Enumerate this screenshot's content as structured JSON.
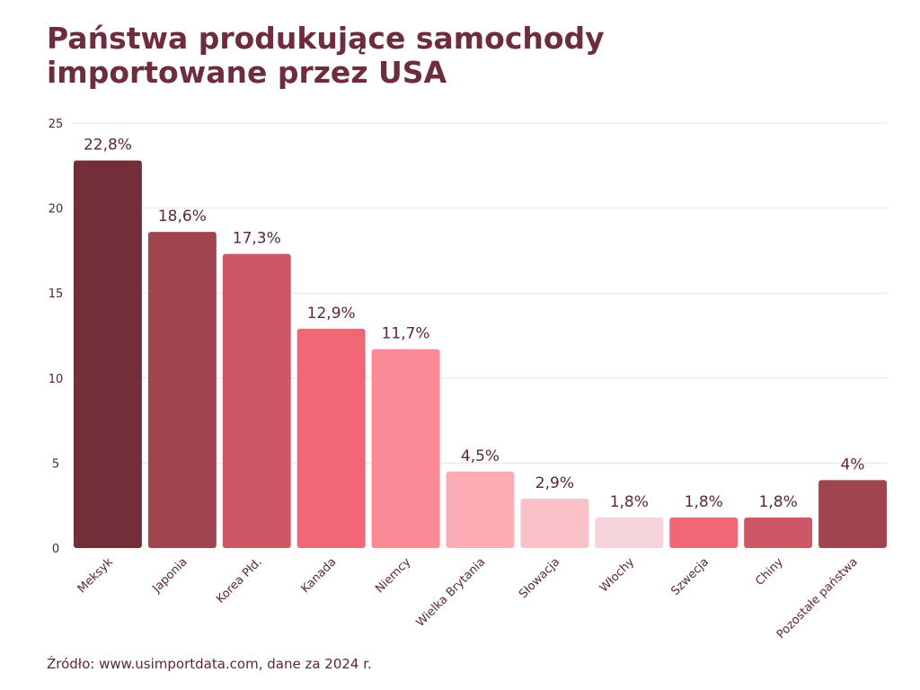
{
  "title_lines": [
    "Państwa produkujące samochody",
    "importowane przez USA"
  ],
  "source": "Źródło: www.usimportdata.com, dane za 2024 r.",
  "chart_data": {
    "type": "bar",
    "title": "Państwa produkujące samochody importowane przez USA",
    "xlabel": "",
    "ylabel": "",
    "ylim": [
      0,
      25
    ],
    "yticks": [
      0,
      5,
      10,
      15,
      20,
      25
    ],
    "grid": true,
    "categories": [
      "Meksyk",
      "Japonia",
      "Korea Płd.",
      "Kanada",
      "Niemcy",
      "Wielka Brytania",
      "Słowacja",
      "Włochy",
      "Szwecja",
      "Chiny",
      "Pozostałe państwa"
    ],
    "values": [
      22.8,
      18.6,
      17.3,
      12.9,
      11.7,
      4.5,
      2.9,
      1.8,
      1.8,
      1.8,
      4.0
    ],
    "data_labels": [
      "22,8%",
      "18,6%",
      "17,3%",
      "12,9%",
      "11,7%",
      "4,5%",
      "2,9%",
      "1,8%",
      "1,8%",
      "1,8%",
      "4%"
    ],
    "colors": [
      "#722f3a",
      "#a0444f",
      "#cd5865",
      "#ef6675",
      "#f98a96",
      "#fbacb5",
      "#f8c2c8",
      "#f5d5d9",
      "#ef6675",
      "#cd5865",
      "#a0444f"
    ]
  }
}
